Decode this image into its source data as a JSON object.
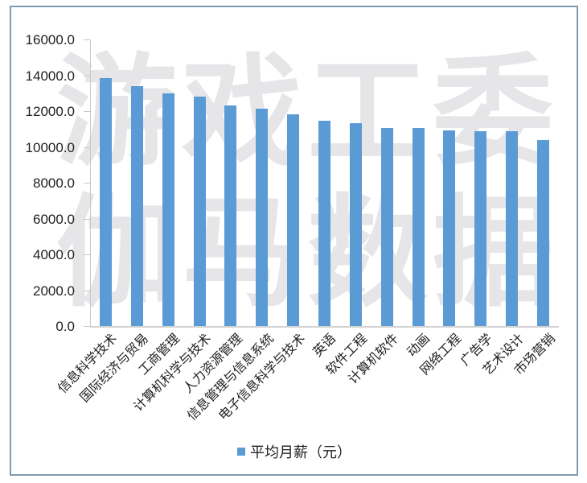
{
  "chart_data": {
    "type": "bar",
    "title": "",
    "xlabel": "",
    "ylabel": "",
    "ylim": [
      0,
      16000
    ],
    "yticks": [
      "0.0",
      "2000.0",
      "4000.0",
      "6000.0",
      "8000.0",
      "10000.0",
      "12000.0",
      "14000.0",
      "16000.0"
    ],
    "grid": false,
    "legend_position": "bottom",
    "categories": [
      "信息科学技术",
      "国际经济与贸易",
      "工商管理",
      "计算机科学与技术",
      "人力资源管理",
      "信息管理与信息系统",
      "电子信息科学与技术",
      "英语",
      "软件工程",
      "计算机软件",
      "动画",
      "网络工程",
      "广告学",
      "艺术设计",
      "市场营销"
    ],
    "series": [
      {
        "name": "平均月薪（元）",
        "color": "#5B9BD5",
        "values": [
          13860,
          13380,
          13000,
          12790,
          12330,
          12150,
          11830,
          11460,
          11330,
          11070,
          11070,
          10940,
          10890,
          10880,
          10400
        ]
      }
    ]
  },
  "watermark": {
    "line1": "游戏工委",
    "line2": "伽马数据"
  },
  "legend": {
    "label": "平均月薪（元）"
  }
}
